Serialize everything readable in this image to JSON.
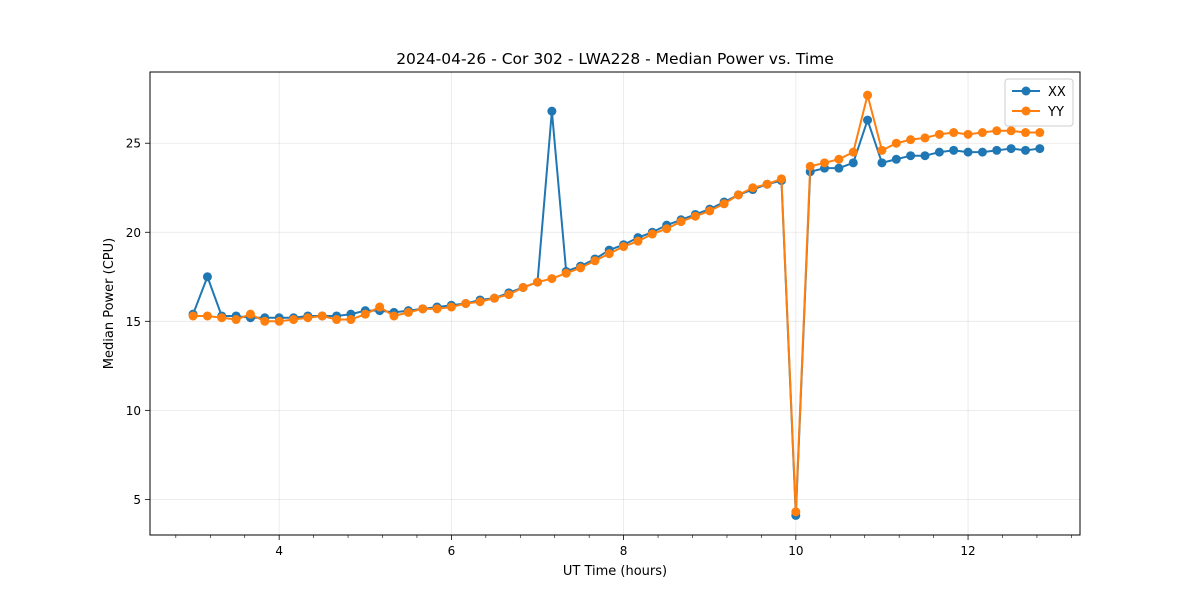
{
  "chart_data": {
    "type": "line",
    "title": "2024-04-26 - Cor 302 - LWA228 - Median Power vs. Time",
    "xlabel": "UT Time (hours)",
    "ylabel": "Median Power (CPU)",
    "xlim": [
      2.5,
      13.3
    ],
    "ylim": [
      3.0,
      29.0
    ],
    "x_ticks": [
      4,
      6,
      8,
      10,
      12
    ],
    "x_tick_labels": [
      "4",
      "6",
      "8",
      "10",
      "12"
    ],
    "y_ticks": [
      5,
      10,
      15,
      20,
      25
    ],
    "y_tick_labels": [
      "5",
      "10",
      "15",
      "20",
      "25"
    ],
    "x_minor_step": 0.4,
    "grid": true,
    "legend_position": "top-right",
    "series": [
      {
        "name": "XX",
        "color": "#1f77b4",
        "x": [
          3.0,
          3.167,
          3.333,
          3.5,
          3.667,
          3.833,
          4.0,
          4.167,
          4.333,
          4.5,
          4.667,
          4.833,
          5.0,
          5.167,
          5.333,
          5.5,
          5.667,
          5.833,
          6.0,
          6.167,
          6.333,
          6.5,
          6.667,
          6.833,
          7.0,
          7.167,
          7.333,
          7.5,
          7.667,
          7.833,
          8.0,
          8.167,
          8.333,
          8.5,
          8.667,
          8.833,
          9.0,
          9.167,
          9.333,
          9.5,
          9.667,
          9.833,
          10.0,
          10.167,
          10.333,
          10.5,
          10.667,
          10.833,
          11.0,
          11.167,
          11.333,
          11.5,
          11.667,
          11.833,
          12.0,
          12.167,
          12.333,
          12.5,
          12.667,
          12.833
        ],
        "values": [
          15.4,
          17.5,
          15.3,
          15.3,
          15.2,
          15.2,
          15.2,
          15.2,
          15.3,
          15.3,
          15.3,
          15.4,
          15.6,
          15.6,
          15.5,
          15.6,
          15.7,
          15.8,
          15.9,
          16.0,
          16.2,
          16.3,
          16.6,
          16.9,
          17.2,
          26.8,
          17.8,
          18.1,
          18.5,
          19.0,
          19.3,
          19.7,
          20.0,
          20.4,
          20.7,
          21.0,
          21.3,
          21.7,
          22.1,
          22.4,
          22.7,
          22.9,
          4.1,
          23.4,
          23.6,
          23.6,
          23.9,
          26.3,
          23.9,
          24.1,
          24.3,
          24.3,
          24.5,
          24.6,
          24.5,
          24.5,
          24.6,
          24.7,
          24.6,
          24.7
        ]
      },
      {
        "name": "YY",
        "color": "#ff7f0e",
        "x": [
          3.0,
          3.167,
          3.333,
          3.5,
          3.667,
          3.833,
          4.0,
          4.167,
          4.333,
          4.5,
          4.667,
          4.833,
          5.0,
          5.167,
          5.333,
          5.5,
          5.667,
          5.833,
          6.0,
          6.167,
          6.333,
          6.5,
          6.667,
          6.833,
          7.0,
          7.167,
          7.333,
          7.5,
          7.667,
          7.833,
          8.0,
          8.167,
          8.333,
          8.5,
          8.667,
          8.833,
          9.0,
          9.167,
          9.333,
          9.5,
          9.667,
          9.833,
          10.0,
          10.167,
          10.333,
          10.5,
          10.667,
          10.833,
          11.0,
          11.167,
          11.333,
          11.5,
          11.667,
          11.833,
          12.0,
          12.167,
          12.333,
          12.5,
          12.667,
          12.833
        ],
        "values": [
          15.3,
          15.3,
          15.2,
          15.1,
          15.4,
          15.0,
          15.0,
          15.1,
          15.2,
          15.3,
          15.1,
          15.1,
          15.4,
          15.8,
          15.3,
          15.5,
          15.7,
          15.7,
          15.8,
          16.0,
          16.1,
          16.3,
          16.5,
          16.9,
          17.2,
          17.4,
          17.7,
          18.0,
          18.4,
          18.8,
          19.2,
          19.5,
          19.9,
          20.2,
          20.6,
          20.9,
          21.2,
          21.6,
          22.1,
          22.5,
          22.7,
          23.0,
          4.3,
          23.7,
          23.9,
          24.1,
          24.5,
          27.7,
          24.6,
          25.0,
          25.2,
          25.3,
          25.5,
          25.6,
          25.5,
          25.6,
          25.7,
          25.7,
          25.6,
          25.6
        ]
      }
    ]
  }
}
